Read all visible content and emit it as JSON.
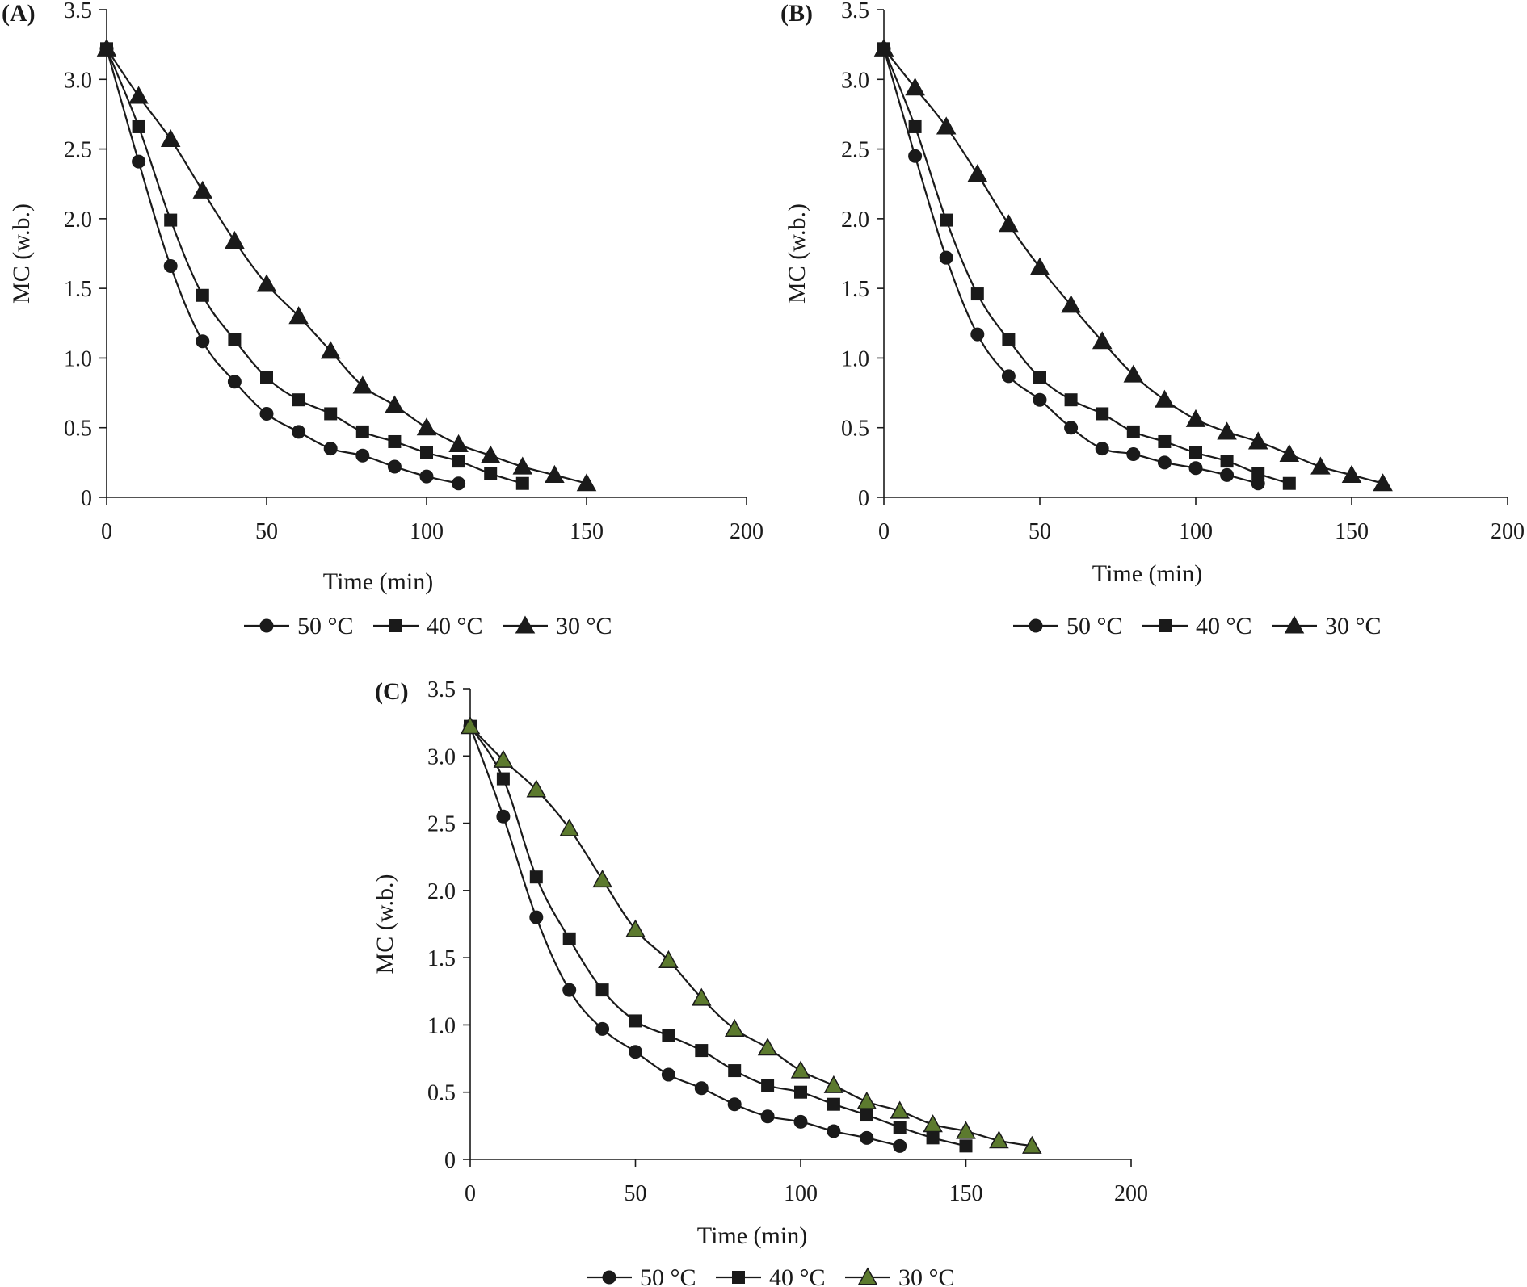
{
  "chart_data": [
    {
      "panel_label": "(A)",
      "type": "line",
      "xlabel": "Time (min)",
      "ylabel": "MC (w.b.)",
      "xlim": [
        0,
        200
      ],
      "ylim": [
        0,
        3.5
      ],
      "x_ticks": [
        "0",
        "50",
        "100",
        "150",
        "200"
      ],
      "y_ticks": [
        "0",
        "0.5",
        "1.0",
        "1.5",
        "2.0",
        "2.5",
        "3.0",
        "3.5"
      ],
      "series": [
        {
          "name": "50 °C",
          "marker": "circle",
          "color": "#1a1a1a",
          "x": [
            0,
            10,
            20,
            30,
            40,
            50,
            60,
            70,
            80,
            90,
            100,
            110
          ],
          "y": [
            3.22,
            2.41,
            1.66,
            1.12,
            0.83,
            0.6,
            0.47,
            0.35,
            0.3,
            0.22,
            0.15,
            0.1
          ]
        },
        {
          "name": "40 °C",
          "marker": "square",
          "color": "#1a1a1a",
          "x": [
            0,
            10,
            20,
            30,
            40,
            50,
            60,
            70,
            80,
            90,
            100,
            110,
            120,
            130
          ],
          "y": [
            3.22,
            2.66,
            1.99,
            1.45,
            1.13,
            0.86,
            0.7,
            0.6,
            0.47,
            0.4,
            0.32,
            0.26,
            0.17,
            0.1
          ]
        },
        {
          "name": "30 °C",
          "marker": "triangle",
          "color": "#1a1a1a",
          "x": [
            0,
            10,
            20,
            30,
            40,
            50,
            60,
            70,
            80,
            90,
            100,
            110,
            120,
            130,
            140,
            150
          ],
          "y": [
            3.22,
            2.88,
            2.57,
            2.2,
            1.84,
            1.53,
            1.3,
            1.05,
            0.8,
            0.66,
            0.5,
            0.38,
            0.3,
            0.22,
            0.16,
            0.1
          ]
        }
      ]
    },
    {
      "panel_label": "(B)",
      "type": "line",
      "xlabel": "Time (min)",
      "ylabel": "MC (w.b.)",
      "xlim": [
        0,
        200
      ],
      "ylim": [
        0,
        3.5
      ],
      "x_ticks": [
        "0",
        "50",
        "100",
        "150",
        "200"
      ],
      "y_ticks": [
        "0",
        "0.5",
        "1.0",
        "1.5",
        "2.0",
        "2.5",
        "3.0",
        "3.5"
      ],
      "series": [
        {
          "name": "50 °C",
          "marker": "circle",
          "color": "#1a1a1a",
          "x": [
            0,
            10,
            20,
            30,
            40,
            50,
            60,
            70,
            80,
            90,
            100,
            110,
            120
          ],
          "y": [
            3.22,
            2.45,
            1.72,
            1.17,
            0.87,
            0.7,
            0.5,
            0.35,
            0.31,
            0.25,
            0.21,
            0.16,
            0.1
          ]
        },
        {
          "name": "40 °C",
          "marker": "square",
          "color": "#1a1a1a",
          "x": [
            0,
            10,
            20,
            30,
            40,
            50,
            60,
            70,
            80,
            90,
            100,
            110,
            120,
            130
          ],
          "y": [
            3.22,
            2.66,
            1.99,
            1.46,
            1.13,
            0.86,
            0.7,
            0.6,
            0.47,
            0.4,
            0.32,
            0.26,
            0.17,
            0.1
          ]
        },
        {
          "name": "30 °C",
          "marker": "triangle",
          "color": "#1a1a1a",
          "x": [
            0,
            10,
            20,
            30,
            40,
            50,
            60,
            70,
            80,
            90,
            100,
            110,
            120,
            130,
            140,
            150,
            160
          ],
          "y": [
            3.22,
            2.94,
            2.66,
            2.32,
            1.96,
            1.65,
            1.38,
            1.12,
            0.88,
            0.7,
            0.56,
            0.47,
            0.4,
            0.31,
            0.22,
            0.16,
            0.1
          ]
        }
      ]
    },
    {
      "panel_label": "(C)",
      "type": "line",
      "xlabel": "Time (min)",
      "ylabel": "MC (w.b.)",
      "xlim": [
        0,
        200
      ],
      "ylim": [
        0,
        3.5
      ],
      "x_ticks": [
        "0",
        "50",
        "100",
        "150",
        "200"
      ],
      "y_ticks": [
        "0",
        "0.5",
        "1.0",
        "1.5",
        "2.0",
        "2.5",
        "3.0",
        "3.5"
      ],
      "series": [
        {
          "name": "50 °C",
          "marker": "circle",
          "color": "#1a1a1a",
          "x": [
            0,
            10,
            20,
            30,
            40,
            50,
            60,
            70,
            80,
            90,
            100,
            110,
            120,
            130
          ],
          "y": [
            3.22,
            2.55,
            1.8,
            1.26,
            0.97,
            0.8,
            0.63,
            0.53,
            0.41,
            0.32,
            0.28,
            0.21,
            0.16,
            0.1
          ]
        },
        {
          "name": "40 °C",
          "marker": "square",
          "color": "#1a1a1a",
          "x": [
            0,
            10,
            20,
            30,
            40,
            50,
            60,
            70,
            80,
            90,
            100,
            110,
            120,
            130,
            140,
            150
          ],
          "y": [
            3.22,
            2.83,
            2.1,
            1.64,
            1.26,
            1.03,
            0.92,
            0.81,
            0.66,
            0.55,
            0.5,
            0.41,
            0.33,
            0.24,
            0.16,
            0.1
          ]
        },
        {
          "name": "30 °C",
          "marker": "triangle",
          "color": "#5c7a2e",
          "x": [
            0,
            10,
            20,
            30,
            40,
            50,
            60,
            70,
            80,
            90,
            100,
            110,
            120,
            130,
            140,
            150,
            160,
            170
          ],
          "y": [
            3.22,
            2.97,
            2.75,
            2.46,
            2.08,
            1.71,
            1.48,
            1.2,
            0.97,
            0.83,
            0.66,
            0.55,
            0.43,
            0.36,
            0.26,
            0.21,
            0.14,
            0.1
          ]
        }
      ]
    }
  ]
}
